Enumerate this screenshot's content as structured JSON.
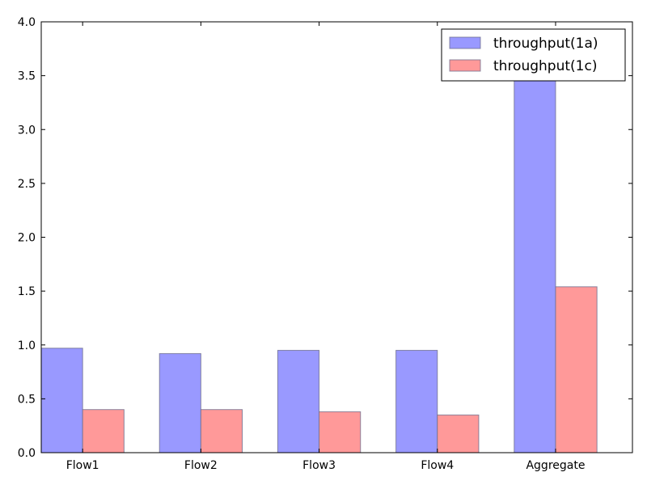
{
  "chart_data": {
    "type": "bar",
    "categories": [
      "Flow1",
      "Flow2",
      "Flow3",
      "Flow4",
      "Aggregate"
    ],
    "series": [
      {
        "name": "throughput(1a)",
        "values": [
          0.97,
          0.92,
          0.95,
          0.95,
          3.87
        ],
        "color": "#9999ff"
      },
      {
        "name": "throughput(1c)",
        "values": [
          0.4,
          0.4,
          0.38,
          0.35,
          1.54
        ],
        "color": "#ff9999"
      }
    ],
    "ylim": [
      0,
      4.0
    ],
    "yticks": [
      "0.0",
      "0.5",
      "1.0",
      "1.5",
      "2.0",
      "2.5",
      "3.0",
      "3.5",
      "4.0"
    ],
    "title": "",
    "xlabel": "",
    "ylabel": "",
    "legend": "top-right",
    "grid": false
  }
}
